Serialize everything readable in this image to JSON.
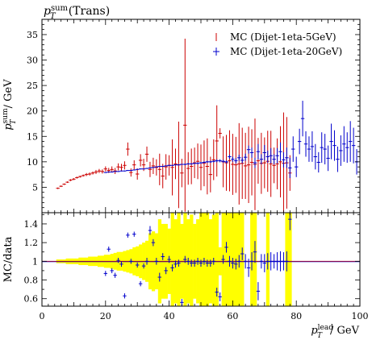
{
  "chart_data": [
    {
      "type": "scatter",
      "panel": "main",
      "title": "p_T^sum (Trans)",
      "title_main": "p",
      "title_sup": "sum",
      "title_sub": "T",
      "title_rest": "(Trans)",
      "ylabel": "p_T^sum / GeV",
      "ylabel_main": "p",
      "ylabel_sup": "sum",
      "ylabel_sub": "T",
      "ylabel_rest": "/ GeV",
      "xlim": [
        0,
        100
      ],
      "ylim": [
        0,
        38
      ],
      "y_ticks": [
        5,
        10,
        15,
        20,
        25,
        30,
        35
      ],
      "y_tick_labels": [
        "5",
        "10",
        "15",
        "20",
        "25",
        "30",
        "35"
      ],
      "grid": false,
      "legend_position": "top-right",
      "legend": [
        {
          "label": "MC (Dijet-1eta-5GeV)",
          "color": "#cc0000"
        },
        {
          "label": "MC (Dijet-1eta-20GeV)",
          "color": "#0000cc"
        }
      ],
      "series": [
        {
          "name": "MC (Dijet-1eta-5GeV)",
          "color": "#cc0000",
          "x": [
            5,
            6,
            7,
            8,
            9,
            10,
            11,
            12,
            13,
            14,
            15,
            16,
            17,
            18,
            19,
            20,
            21,
            22,
            23,
            24,
            25,
            26,
            27,
            28,
            29,
            30,
            31,
            32,
            33,
            34,
            35,
            36,
            37,
            38,
            39,
            40,
            41,
            42,
            43,
            44,
            45,
            46,
            47,
            48,
            49,
            50,
            51,
            52,
            53,
            54,
            55,
            56,
            57,
            58,
            59,
            60,
            61,
            62,
            63,
            64,
            65,
            66,
            67,
            68,
            69,
            70,
            71,
            72,
            73,
            74,
            75,
            76,
            77,
            78
          ],
          "y": [
            4.8,
            5.2,
            5.6,
            6.0,
            6.4,
            6.6,
            6.9,
            7.1,
            7.3,
            7.5,
            7.6,
            7.8,
            8.0,
            8.2,
            8.1,
            8.6,
            8.3,
            8.5,
            8.2,
            9.0,
            8.9,
            9.3,
            12.5,
            7.9,
            9.4,
            7.6,
            10.3,
            9.4,
            11.5,
            8.5,
            9.2,
            8.9,
            8.5,
            7.2,
            9.0,
            9.3,
            8.9,
            9.6,
            9.4,
            7.8,
            17.2,
            8.7,
            9.1,
            9.8,
            10.1,
            8.9,
            9.7,
            9.1,
            7.5,
            10.4,
            14.1,
            15.6,
            10.0,
            9.8,
            10.2,
            9.5,
            9.4,
            9.6,
            9.7,
            9.2,
            9.4,
            9.9,
            9.5,
            10.2,
            9.7,
            9.8,
            10.1,
            9.6,
            9.3,
            9.6,
            10.0,
            9.7,
            9.8,
            7.8
          ],
          "yerr": [
            0.15,
            0.15,
            0.15,
            0.15,
            0.2,
            0.2,
            0.2,
            0.2,
            0.2,
            0.3,
            0.3,
            0.3,
            0.4,
            0.4,
            0.4,
            0.5,
            0.5,
            0.6,
            0.6,
            0.7,
            0.7,
            0.8,
            1.3,
            0.8,
            0.9,
            1.1,
            1.2,
            1.2,
            1.5,
            1.5,
            1.6,
            1.6,
            3.1,
            2.4,
            2.5,
            2.0,
            5.5,
            3.0,
            8.5,
            2.8,
            17.0,
            3.2,
            3.5,
            3.0,
            3.5,
            4.5,
            4.5,
            5.5,
            3.5,
            4.0,
            7.0,
            1.0,
            5.0,
            5.5,
            6.0,
            6.0,
            5.5,
            8.0,
            7.0,
            6.5,
            7.5,
            6.5,
            9.0,
            4.5,
            6.0,
            5.0,
            6.0,
            6.5,
            3.5,
            5.0,
            7.0,
            10.0,
            9.0,
            3.5
          ]
        },
        {
          "name": "MC (Dijet-1eta-20GeV)",
          "color": "#0000cc",
          "x": [
            20,
            21,
            22,
            23,
            24,
            25,
            26,
            27,
            28,
            29,
            30,
            31,
            32,
            33,
            34,
            35,
            36,
            37,
            38,
            39,
            40,
            41,
            42,
            43,
            44,
            45,
            46,
            47,
            48,
            49,
            50,
            51,
            52,
            53,
            54,
            55,
            56,
            57,
            58,
            59,
            60,
            61,
            62,
            63,
            64,
            65,
            66,
            67,
            68,
            69,
            70,
            71,
            72,
            73,
            74,
            75,
            76,
            77,
            78,
            79,
            80,
            81,
            82,
            83,
            84,
            85,
            86,
            87,
            88,
            89,
            90,
            91,
            92,
            93,
            94,
            95,
            96,
            97,
            98,
            99
          ],
          "y": [
            7.9,
            8.0,
            8.0,
            8.1,
            8.1,
            8.2,
            8.2,
            8.3,
            8.3,
            8.4,
            8.5,
            8.6,
            8.6,
            8.7,
            8.8,
            8.9,
            9.0,
            9.1,
            9.1,
            9.2,
            9.3,
            9.3,
            9.4,
            9.4,
            9.5,
            9.5,
            9.6,
            9.6,
            9.7,
            9.7,
            9.8,
            9.9,
            10.0,
            10.0,
            10.1,
            10.2,
            10.2,
            10.1,
            10.0,
            11.0,
            10.5,
            10.2,
            10.8,
            10.3,
            10.9,
            12.4,
            11.8,
            9.8,
            12.0,
            10.5,
            11.8,
            11.0,
            11.2,
            10.5,
            11.2,
            12.0,
            10.4,
            10.8,
            8.8,
            12.5,
            9.0,
            14.0,
            18.5,
            13.5,
            12.5,
            13.0,
            11.0,
            9.9,
            12.8,
            12.5,
            10.7,
            14.0,
            13.2,
            10.5,
            12.2,
            13.5,
            12.8,
            14.0,
            13.2,
            10.0
          ],
          "yerr": [
            0.1,
            0.1,
            0.1,
            0.1,
            0.1,
            0.1,
            0.1,
            0.1,
            0.1,
            0.1,
            0.1,
            0.1,
            0.1,
            0.1,
            0.1,
            0.1,
            0.1,
            0.1,
            0.1,
            0.1,
            0.1,
            0.1,
            0.1,
            0.1,
            0.1,
            0.15,
            0.15,
            0.15,
            0.15,
            0.2,
            0.2,
            0.2,
            0.2,
            0.2,
            0.2,
            0.3,
            0.3,
            0.3,
            0.3,
            0.4,
            0.5,
            0.5,
            0.6,
            0.6,
            0.7,
            0.8,
            1.0,
            1.0,
            1.5,
            1.0,
            1.5,
            1.2,
            1.5,
            1.0,
            1.5,
            1.8,
            1.5,
            2.0,
            2.0,
            2.5,
            2.0,
            2.5,
            3.5,
            2.5,
            2.5,
            3.0,
            2.5,
            2.0,
            3.0,
            3.0,
            2.5,
            3.5,
            3.0,
            2.5,
            3.0,
            3.5,
            3.0,
            4.0,
            3.5,
            2.5
          ]
        }
      ]
    },
    {
      "type": "scatter",
      "panel": "ratio",
      "ylabel": "MC/data",
      "xlabel": "p_T^lead / GeV",
      "xlabel_main": "p",
      "xlabel_sup": "lead",
      "xlabel_sub": "T",
      "xlabel_rest": "/ GeV",
      "xlim": [
        0,
        100
      ],
      "ylim": [
        0.52,
        1.52
      ],
      "x_ticks": [
        0,
        20,
        40,
        60,
        80,
        100
      ],
      "x_tick_labels": [
        "0",
        "20",
        "40",
        "60",
        "80",
        "100"
      ],
      "y_ticks": [
        0.6,
        0.8,
        1.0,
        1.2,
        1.4
      ],
      "y_tick_labels": [
        "0.6",
        "0.8",
        "1",
        "1.2",
        "1.4"
      ],
      "reference_line": 1.0,
      "band_color": "#ffff00",
      "band": {
        "x": [
          5,
          6,
          7,
          8,
          9,
          10,
          11,
          12,
          13,
          14,
          15,
          16,
          17,
          18,
          19,
          20,
          21,
          22,
          23,
          24,
          25,
          26,
          27,
          28,
          29,
          30,
          31,
          32,
          33,
          34,
          35,
          36,
          37,
          38,
          39,
          40,
          41,
          42,
          43,
          44,
          45,
          46,
          47,
          48,
          49,
          50,
          51,
          52,
          53,
          54,
          55,
          56,
          57,
          58,
          59,
          60,
          61,
          62,
          63,
          64,
          65,
          66,
          67,
          68,
          69,
          70,
          71,
          72,
          73,
          74,
          75,
          76,
          77,
          78
        ],
        "halfwidth": [
          0.02,
          0.02,
          0.02,
          0.03,
          0.03,
          0.03,
          0.03,
          0.04,
          0.04,
          0.04,
          0.05,
          0.05,
          0.05,
          0.06,
          0.06,
          0.07,
          0.07,
          0.08,
          0.09,
          0.1,
          0.1,
          0.11,
          0.12,
          0.13,
          0.15,
          0.16,
          0.18,
          0.2,
          0.22,
          0.3,
          0.32,
          0.3,
          0.45,
          0.4,
          0.4,
          0.35,
          0.6,
          0.45,
          0.9,
          0.4,
          1.0,
          0.45,
          0.5,
          0.4,
          0.45,
          0.55,
          0.55,
          0.65,
          0.45,
          0.5,
          0.7,
          0.15,
          0.6,
          0.65,
          0.7,
          0.7,
          0.6,
          0.85,
          0.8,
          0.0,
          0.0,
          0.9,
          0.9,
          0.0,
          0.0,
          0.0,
          0.85,
          0.0,
          0.0,
          0.0,
          0.0,
          0.0,
          0.95,
          0.95
        ]
      },
      "points": {
        "color": "#0000cc",
        "x": [
          20,
          21,
          22,
          23,
          24,
          25,
          26,
          27,
          28,
          29,
          30,
          31,
          32,
          33,
          34,
          35,
          36,
          37,
          38,
          39,
          40,
          41,
          42,
          43,
          44,
          45,
          46,
          47,
          48,
          49,
          50,
          51,
          52,
          53,
          54,
          55,
          56,
          57,
          58,
          59,
          60,
          61,
          62,
          63,
          64,
          65,
          66,
          67,
          68,
          69,
          70,
          71,
          72,
          73,
          74,
          75,
          76,
          77,
          78
        ],
        "y": [
          0.87,
          1.13,
          0.9,
          0.85,
          1.01,
          0.97,
          0.63,
          1.28,
          1.0,
          1.29,
          0.96,
          0.76,
          0.95,
          1.0,
          1.33,
          1.2,
          1.0,
          0.83,
          1.05,
          0.9,
          1.02,
          0.93,
          0.97,
          0.98,
          0.56,
          1.02,
          1.0,
          0.98,
          0.98,
          1.0,
          0.98,
          1.0,
          0.98,
          0.98,
          1.0,
          0.67,
          0.62,
          1.02,
          1.15,
          1.0,
          0.98,
          0.97,
          1.0,
          1.08,
          1.0,
          0.93,
          1.0,
          1.1,
          0.68,
          1.0,
          0.98,
          1.0,
          1.0,
          1.0,
          1.0,
          1.0,
          1.0,
          1.0,
          1.45
        ],
        "yerr": [
          0.01,
          0.01,
          0.01,
          0.01,
          0.01,
          0.01,
          0.01,
          0.01,
          0.01,
          0.01,
          0.01,
          0.01,
          0.01,
          0.02,
          0.03,
          0.02,
          0.02,
          0.03,
          0.02,
          0.02,
          0.02,
          0.02,
          0.02,
          0.02,
          0.02,
          0.02,
          0.02,
          0.02,
          0.02,
          0.02,
          0.02,
          0.02,
          0.02,
          0.02,
          0.02,
          0.03,
          0.03,
          0.03,
          0.04,
          0.04,
          0.04,
          0.04,
          0.05,
          0.05,
          0.06,
          0.08,
          0.08,
          0.1,
          0.08,
          0.06,
          0.08,
          0.07,
          0.08,
          0.06,
          0.08,
          0.09,
          0.08,
          0.09,
          0.1
        ]
      }
    }
  ]
}
